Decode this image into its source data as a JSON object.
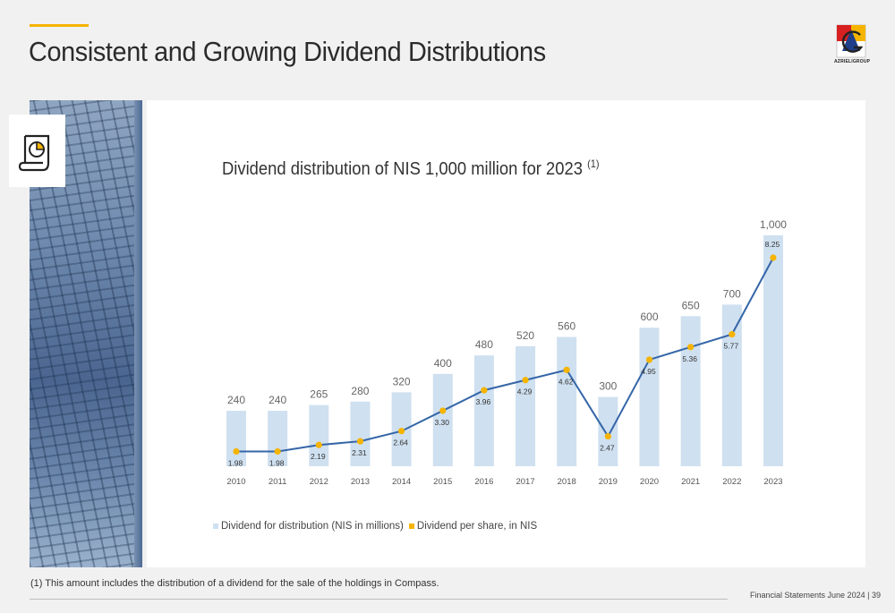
{
  "page": {
    "title": "Consistent and Growing Dividend Distributions",
    "logo_text": "AZRIELIGROUP",
    "footnote": "(1) This amount includes the distribution of a dividend for the sale of the holdings in Compass.",
    "footer_label": "Financial Statements June  2024",
    "footer_sep": "|",
    "page_number": "39"
  },
  "colors": {
    "accent": "#f5b400",
    "bar": "#cfe0f0",
    "line": "#3566a8",
    "marker": "#f5b400"
  },
  "chart_data": {
    "type": "bar",
    "title": "Dividend distribution of NIS 1,000 million for 2023",
    "title_note": "(1)",
    "categories": [
      "2010",
      "2011",
      "2012",
      "2013",
      "2014",
      "2015",
      "2016",
      "2017",
      "2018",
      "2019",
      "2020",
      "2021",
      "2022",
      "2023"
    ],
    "series": [
      {
        "name": "Dividend for distribution (NIS in millions)",
        "type": "bar",
        "values": [
          240,
          240,
          265,
          280,
          320,
          400,
          480,
          520,
          560,
          300,
          600,
          650,
          700,
          1000
        ],
        "labels": [
          "240",
          "240",
          "265",
          "280",
          "320",
          "400",
          "480",
          "520",
          "560",
          "300",
          "600",
          "650",
          "700",
          "1,000"
        ]
      },
      {
        "name": "Dividend per share, in NIS",
        "type": "line",
        "values": [
          1.98,
          1.98,
          2.19,
          2.31,
          2.64,
          3.3,
          3.96,
          4.29,
          4.62,
          2.47,
          4.95,
          5.36,
          5.77,
          8.25
        ],
        "labels": [
          "1.98",
          "1.98",
          "2.19",
          "2.31",
          "2.64",
          "3.30",
          "3.96",
          "4.29",
          "4.62",
          "2.47",
          "4.95",
          "5.36",
          "5.77",
          "8.25"
        ]
      }
    ],
    "legend": "bottom-left",
    "grid": false
  }
}
